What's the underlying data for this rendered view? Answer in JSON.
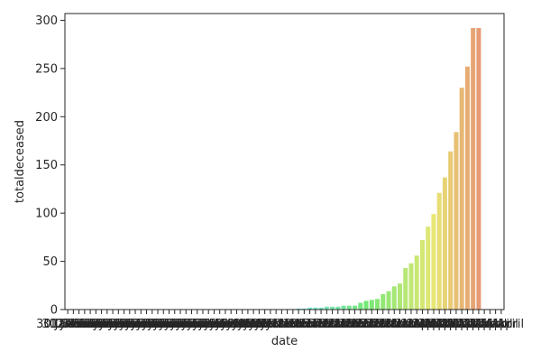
{
  "chart_data": {
    "type": "bar",
    "xlabel": "date",
    "ylabel": "totaldeceased",
    "ylim": [
      0,
      307
    ],
    "yticks": [
      0,
      50,
      100,
      150,
      200,
      250,
      300
    ],
    "grid": false,
    "categories": [
      "30 January",
      "31 January",
      "01 February",
      "02 February",
      "03 February",
      "04 February",
      "05 February",
      "06 February",
      "07 February",
      "08 February",
      "09 February",
      "10 February",
      "11 February",
      "12 February",
      "13 February",
      "14 February",
      "15 February",
      "16 February",
      "17 February",
      "18 February",
      "19 February",
      "20 February",
      "21 February",
      "22 February",
      "23 February",
      "24 February",
      "25 February",
      "26 February",
      "27 February",
      "28 February",
      "29 February",
      "01 March",
      "02 March",
      "03 March",
      "04 March",
      "05 March",
      "06 March",
      "07 March",
      "08 March",
      "09 March",
      "10 March",
      "11 March",
      "12 March",
      "13 March",
      "14 March",
      "15 March",
      "16 March",
      "17 March",
      "18 March",
      "19 March",
      "20 March",
      "21 March",
      "22 March",
      "23 March",
      "24 March",
      "25 March",
      "26 March",
      "27 March",
      "28 March",
      "29 March",
      "30 March",
      "31 March",
      "01 April",
      "02 April",
      "03 April",
      "04 April",
      "05 April",
      "06 April",
      "07 April",
      "08 April",
      "09 April",
      "10 April",
      "11 April",
      "12 April",
      "13 April",
      "14 April",
      "15 April",
      "16 April"
    ],
    "values": [
      0,
      0,
      0,
      0,
      0,
      0,
      0,
      0,
      0,
      0,
      0,
      0,
      0,
      0,
      0,
      0,
      0,
      0,
      0,
      0,
      0,
      0,
      0,
      0,
      0,
      0,
      0,
      0,
      0,
      0,
      0,
      0,
      0,
      0,
      0,
      0,
      0,
      0,
      0,
      0,
      0,
      1,
      1,
      2,
      2,
      2,
      3,
      3,
      3,
      4,
      4,
      4,
      7,
      9,
      10,
      11,
      16,
      19,
      24,
      27,
      43,
      48,
      56,
      72,
      86,
      99,
      121,
      137,
      164,
      184,
      230,
      252,
      292,
      292,
      0,
      0,
      0,
      0
    ]
  }
}
